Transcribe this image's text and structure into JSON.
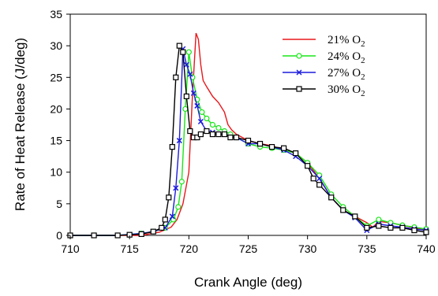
{
  "chart_data": {
    "type": "line",
    "xlabel": "Crank Angle (deg)",
    "ylabel": "Rate of Heat Release (J/deg)",
    "xlim": [
      710,
      740
    ],
    "ylim": [
      0,
      35
    ],
    "x_ticks": [
      710,
      715,
      720,
      725,
      730,
      735,
      740
    ],
    "y_ticks": [
      0,
      5,
      10,
      15,
      20,
      25,
      30,
      35
    ],
    "grid": false,
    "legend_position": "top-right",
    "series": [
      {
        "name": "21% O2",
        "name_base": "21% O",
        "name_sub": "2",
        "color": "#e8171b",
        "marker": "none",
        "x": [
          710,
          716,
          717.5,
          718.5,
          719,
          719.5,
          720,
          720.3,
          720.6,
          720.8,
          721,
          721.2,
          721.5,
          722,
          722.5,
          723,
          723.3,
          723.6,
          724,
          725,
          726,
          727,
          728,
          729,
          730,
          731,
          732,
          733,
          734,
          735,
          735.5,
          736,
          737,
          738,
          739,
          740
        ],
        "y": [
          0,
          0,
          0.5,
          1.3,
          2.5,
          5,
          10,
          22,
          32,
          31,
          27,
          24.5,
          23.5,
          22,
          21,
          19.5,
          17.5,
          16.7,
          16,
          15,
          14.5,
          14.2,
          13.5,
          13,
          11.5,
          9,
          6,
          4,
          3,
          2,
          1.3,
          2.2,
          2,
          1.6,
          1.2,
          0.8
        ]
      },
      {
        "name": "24% O2",
        "name_base": "24% O",
        "name_sub": "2",
        "color": "#19e619",
        "marker": "circle",
        "x": [
          710,
          712,
          714,
          716,
          717,
          718,
          718.7,
          719.1,
          719.4,
          719.7,
          720,
          720.3,
          720.7,
          721.1,
          721.5,
          722,
          722.5,
          723,
          723.5,
          724,
          725,
          726,
          727,
          728,
          729,
          730,
          731,
          732,
          733,
          734,
          735,
          736,
          737,
          738,
          739,
          740
        ],
        "y": [
          0,
          0,
          0,
          0.3,
          0.6,
          1.2,
          2.5,
          4.5,
          8.5,
          20,
          29,
          25,
          21.5,
          19.5,
          18.5,
          17.5,
          17,
          16.5,
          16,
          15.5,
          14.5,
          14,
          13.8,
          13.5,
          13,
          11.5,
          9.5,
          6.5,
          4.5,
          3,
          1.5,
          2.5,
          2,
          1.6,
          1.3,
          1
        ]
      },
      {
        "name": "27% O2",
        "name_base": "27% O",
        "name_sub": "2",
        "color": "#1c1cdc",
        "marker": "x",
        "x": [
          710,
          712,
          714,
          716,
          717,
          718,
          718.6,
          718.9,
          719.2,
          719.5,
          719.8,
          720.1,
          720.4,
          720.7,
          721,
          721.5,
          722,
          722.5,
          723,
          724,
          725,
          726,
          727,
          728,
          729,
          730,
          731,
          732,
          733,
          734,
          735,
          736,
          737,
          738,
          739,
          740
        ],
        "y": [
          0,
          0,
          0,
          0.3,
          0.6,
          1.2,
          3,
          7.5,
          15,
          29.5,
          27,
          25.5,
          22.5,
          20.5,
          18,
          16.5,
          16.3,
          16,
          16,
          15.5,
          14.5,
          14.5,
          14,
          13.5,
          12.5,
          11,
          9,
          6,
          4,
          2.8,
          0.8,
          1.8,
          1.5,
          1.3,
          1,
          0.8
        ]
      },
      {
        "name": "30% O2",
        "name_base": "30% O",
        "name_sub": "2",
        "color": "#000000",
        "marker": "square",
        "x": [
          710,
          712,
          714,
          715,
          716,
          717,
          717.7,
          718,
          718.3,
          718.6,
          718.9,
          719.2,
          719.5,
          719.8,
          720.1,
          720.4,
          720.7,
          721,
          721.5,
          722,
          722.5,
          723,
          723.5,
          724,
          725,
          726,
          727,
          728,
          729,
          730,
          730.5,
          731,
          732,
          733,
          734,
          735,
          736,
          737,
          738,
          739,
          740
        ],
        "y": [
          0,
          0,
          0,
          0.1,
          0.2,
          0.6,
          1.2,
          2.5,
          6,
          14,
          25,
          30,
          29,
          22,
          16.5,
          15.5,
          15.5,
          16,
          16.5,
          16,
          16,
          16,
          15.5,
          15.5,
          15,
          14.5,
          14,
          13.8,
          13,
          11,
          9,
          8,
          6,
          4,
          3,
          1.2,
          1.5,
          1.2,
          1.2,
          0.8,
          0.5
        ]
      }
    ]
  }
}
